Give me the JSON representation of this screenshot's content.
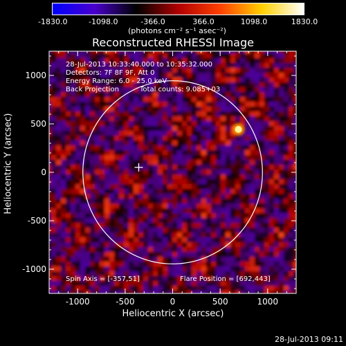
{
  "colorbar": {
    "ticks": [
      "-1830.0",
      "-1098.0",
      "-366.0",
      "366.0",
      "1098.0",
      "1830.0"
    ],
    "units": "(photons cm⁻² s⁻¹ asec⁻²)",
    "colors": [
      "#0000ff",
      "#4a00cc",
      "#000000",
      "#b00000",
      "#ff4000",
      "#ffd000",
      "#ffffff"
    ]
  },
  "annotations": {
    "time_range": "28-Jul-2013 10:33:40.000 to 10:35:32.000",
    "detectors": "Detectors: 7F 8F 9F, Att 0",
    "energy_range": "Energy Range: 6.0 - 25.0 keV",
    "method": "Back Projection",
    "total_counts": "Total counts: 9.085+03",
    "spin_axis": "Spin Axis = [-357,51]",
    "flare_position": "Flare Position = [692,443]"
  },
  "footer": {
    "timestamp": "28-Jul-2013 09:11"
  },
  "chart_data": {
    "type": "heatmap",
    "title": "Reconstructed RHESSI Image",
    "xlabel": "Heliocentric X (arcsec)",
    "ylabel": "Heliocentric Y (arcsec)",
    "xlim": [
      -1300,
      1300
    ],
    "ylim": [
      -1250,
      1250
    ],
    "xticks": [
      -1000,
      -500,
      0,
      500,
      1000
    ],
    "yticks": [
      -1000,
      -500,
      0,
      500,
      1000
    ],
    "color_range": [
      -1830,
      1830
    ],
    "solar_limb": {
      "center": [
        0,
        0
      ],
      "radius_arcsec": 945
    },
    "cross_marker": [
      -357,
      51
    ],
    "flare_source": [
      692,
      443
    ]
  }
}
